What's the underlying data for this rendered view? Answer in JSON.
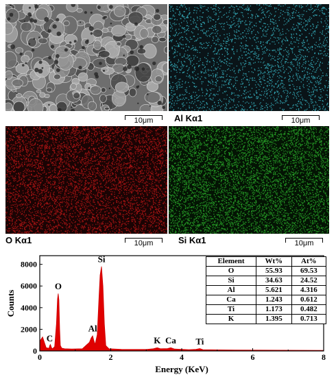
{
  "maps": [
    {
      "label": "",
      "scalebar": "10μm",
      "color": "#8c8c8c"
    },
    {
      "label": "Al Kα1",
      "scalebar": "10μm",
      "color": "#3fd0e0"
    },
    {
      "label": "O Kα1",
      "scalebar": "10μm",
      "color": "#d21818"
    },
    {
      "label": "Si Kα1",
      "scalebar": "10μm",
      "color": "#2fc02f"
    }
  ],
  "chart_data": {
    "type": "line",
    "xlabel": "Energy (KeV)",
    "ylabel": "Counts",
    "xlim": [
      0,
      8
    ],
    "ylim": [
      0,
      8800
    ],
    "xticks": [
      0,
      2,
      4,
      6,
      8
    ],
    "yticks": [
      0,
      2000,
      4000,
      6000,
      8000
    ],
    "series": [
      {
        "x": [
          0.0,
          0.08,
          0.18,
          0.26,
          0.28,
          0.3,
          0.33,
          0.36,
          0.42,
          0.47,
          0.5,
          0.52,
          0.54,
          0.56,
          0.58,
          0.62,
          0.7,
          0.9,
          1.2,
          1.4,
          1.45,
          1.49,
          1.52,
          1.56,
          1.62,
          1.67,
          1.7,
          1.74,
          1.78,
          1.82,
          1.86,
          1.95,
          2.3,
          3.0,
          3.2,
          3.31,
          3.4,
          3.6,
          3.69,
          3.8,
          4.2,
          4.4,
          4.51,
          4.6,
          5.5,
          8.0
        ],
        "y": [
          900,
          1300,
          300,
          250,
          500,
          600,
          300,
          200,
          400,
          2500,
          4800,
          5300,
          4700,
          2000,
          500,
          260,
          200,
          180,
          200,
          800,
          1200,
          1400,
          1000,
          600,
          1500,
          5000,
          7000,
          7800,
          6000,
          2500,
          500,
          200,
          150,
          140,
          200,
          300,
          200,
          220,
          300,
          180,
          120,
          150,
          220,
          120,
          80,
          60
        ]
      }
    ],
    "peak_labels": [
      {
        "text": "C",
        "x": 0.28,
        "y": 900
      },
      {
        "text": "O",
        "x": 0.52,
        "y": 5700
      },
      {
        "text": "Al",
        "x": 1.49,
        "y": 1800
      },
      {
        "text": "Si",
        "x": 1.74,
        "y": 8200
      },
      {
        "text": "K",
        "x": 3.31,
        "y": 700
      },
      {
        "text": "Ca",
        "x": 3.69,
        "y": 700
      },
      {
        "text": "Ti",
        "x": 4.51,
        "y": 600
      }
    ]
  },
  "table": {
    "headers": [
      "Element",
      "Wt%",
      "At%"
    ],
    "rows": [
      [
        "O",
        "55.93",
        "69.53"
      ],
      [
        "Si",
        "34.63",
        "24.52"
      ],
      [
        "Al",
        "5.621",
        "4.316"
      ],
      [
        "Ca",
        "1.243",
        "0.612"
      ],
      [
        "Ti",
        "1.173",
        "0.482"
      ],
      [
        "K",
        "1.395",
        "0.713"
      ]
    ]
  }
}
